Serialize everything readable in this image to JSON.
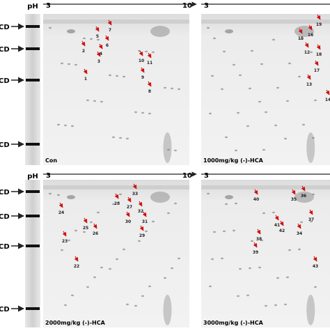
{
  "rows": [
    {
      "ph": "pH",
      "mw_labels": [
        "CD",
        "CD",
        "CD",
        "CD"
      ],
      "panels": [
        {
          "ph_start": "3",
          "ph_end": "10",
          "label": "Con",
          "spots": [
            "1",
            "2",
            "3",
            "4",
            "5",
            "6",
            "7",
            "8",
            "9",
            "10",
            "11"
          ]
        },
        {
          "ph_start": "3",
          "label": "1000mg/kg (-)-HCA",
          "spots": [
            "12",
            "13",
            "14",
            "15",
            "16",
            "17",
            "18",
            "19"
          ]
        }
      ]
    },
    {
      "ph": "pH",
      "mw_labels": [
        "CD",
        "CD",
        "CD",
        "CD"
      ],
      "panels": [
        {
          "ph_start": "3",
          "ph_end": "10",
          "label": "2000mg/kg (-)-HCA",
          "spots": [
            "22",
            "23",
            "24",
            "25",
            "26",
            "27",
            "28",
            "29",
            "30",
            "31",
            "32",
            "33"
          ]
        },
        {
          "ph_start": "3",
          "label": "3000mg/kg (-)-HCA",
          "spots": [
            "34",
            "35",
            "36",
            "37",
            "38",
            "39",
            "40",
            "41",
            "42",
            "43"
          ]
        }
      ]
    }
  ]
}
